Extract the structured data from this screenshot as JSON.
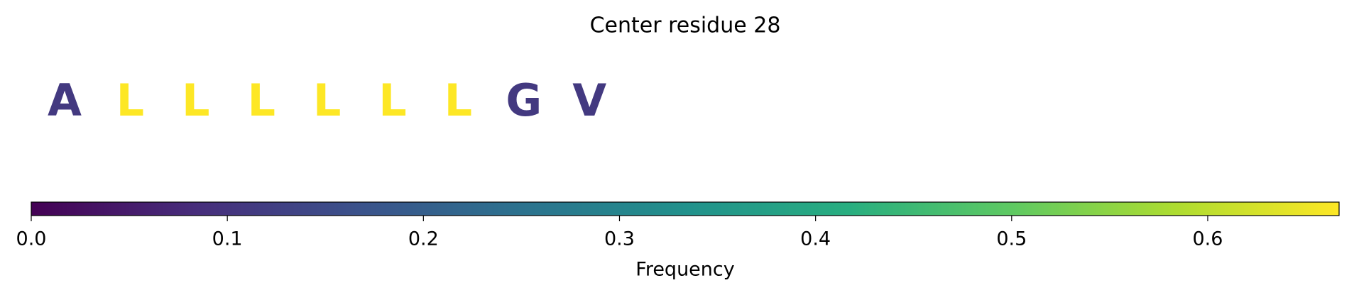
{
  "chart_data": {
    "type": "sequence",
    "title": "Center residue 28",
    "categories": [
      "A",
      "L",
      "L",
      "L",
      "L",
      "L",
      "L",
      "G",
      "V"
    ],
    "values": [
      0.111,
      0.667,
      0.667,
      0.667,
      0.667,
      0.667,
      0.667,
      0.111,
      0.111
    ],
    "colormap": "viridis",
    "xlim": [
      0,
      0.667
    ],
    "xticks": [
      {
        "value": 0,
        "label": "0.0"
      },
      0.1,
      0.2,
      0.3,
      0.4,
      0.5,
      0.6
    ],
    "xlabel": "Frequency"
  }
}
